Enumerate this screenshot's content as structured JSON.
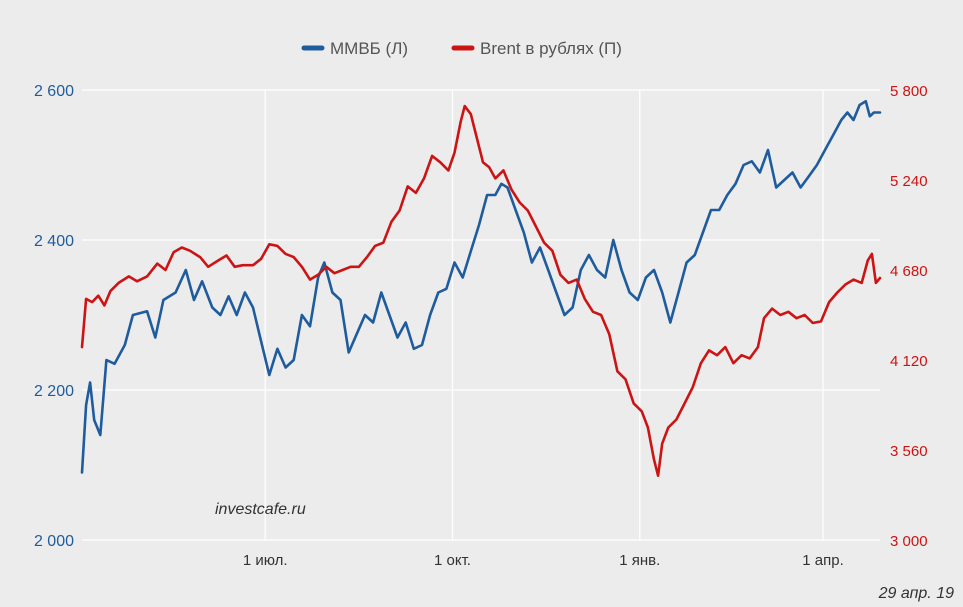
{
  "chart_data": {
    "type": "line",
    "grid": true,
    "legend_position": "top-center",
    "y_left": {
      "ticks": [
        2000,
        2200,
        2400,
        2600
      ],
      "tick_labels": [
        "2 000",
        "2 200",
        "2 400",
        "2 600"
      ],
      "ylim": [
        2000,
        2600
      ]
    },
    "y_right": {
      "ticks": [
        3000,
        3560,
        4120,
        4680,
        5240,
        5800
      ],
      "tick_labels": [
        "3 000",
        "3 560",
        "4 120",
        "4 680",
        "5 240",
        "5 800"
      ],
      "ylim": [
        3000,
        5800
      ]
    },
    "x_ticks": [
      {
        "date": "2018-07-01",
        "label": "1 июл."
      },
      {
        "date": "2018-10-01",
        "label": "1 окт."
      },
      {
        "date": "2019-01-01",
        "label": "1 янв."
      },
      {
        "date": "2019-04-01",
        "label": "1 апр."
      }
    ],
    "xlim": [
      "2018-04-02",
      "2019-04-29"
    ],
    "series": [
      {
        "name": "ММВБ (Л)",
        "axis": "left",
        "color": "#1f5c9e",
        "points": [
          [
            "2018-04-02",
            2090
          ],
          [
            "2018-04-04",
            2180
          ],
          [
            "2018-04-06",
            2210
          ],
          [
            "2018-04-08",
            2160
          ],
          [
            "2018-04-11",
            2140
          ],
          [
            "2018-04-14",
            2240
          ],
          [
            "2018-04-18",
            2235
          ],
          [
            "2018-04-23",
            2260
          ],
          [
            "2018-04-27",
            2300
          ],
          [
            "2018-05-04",
            2305
          ],
          [
            "2018-05-08",
            2270
          ],
          [
            "2018-05-12",
            2320
          ],
          [
            "2018-05-18",
            2330
          ],
          [
            "2018-05-23",
            2360
          ],
          [
            "2018-05-27",
            2320
          ],
          [
            "2018-05-31",
            2345
          ],
          [
            "2018-06-05",
            2310
          ],
          [
            "2018-06-09",
            2300
          ],
          [
            "2018-06-13",
            2325
          ],
          [
            "2018-06-17",
            2300
          ],
          [
            "2018-06-21",
            2330
          ],
          [
            "2018-06-25",
            2310
          ],
          [
            "2018-06-29",
            2265
          ],
          [
            "2018-07-03",
            2220
          ],
          [
            "2018-07-07",
            2255
          ],
          [
            "2018-07-11",
            2230
          ],
          [
            "2018-07-15",
            2240
          ],
          [
            "2018-07-19",
            2300
          ],
          [
            "2018-07-23",
            2285
          ],
          [
            "2018-07-27",
            2350
          ],
          [
            "2018-07-30",
            2370
          ],
          [
            "2018-08-03",
            2330
          ],
          [
            "2018-08-07",
            2320
          ],
          [
            "2018-08-11",
            2250
          ],
          [
            "2018-08-15",
            2275
          ],
          [
            "2018-08-19",
            2300
          ],
          [
            "2018-08-23",
            2290
          ],
          [
            "2018-08-27",
            2330
          ],
          [
            "2018-08-31",
            2300
          ],
          [
            "2018-09-04",
            2270
          ],
          [
            "2018-09-08",
            2290
          ],
          [
            "2018-09-12",
            2255
          ],
          [
            "2018-09-16",
            2260
          ],
          [
            "2018-09-20",
            2300
          ],
          [
            "2018-09-24",
            2330
          ],
          [
            "2018-09-28",
            2335
          ],
          [
            "2018-10-02",
            2370
          ],
          [
            "2018-10-06",
            2350
          ],
          [
            "2018-10-10",
            2385
          ],
          [
            "2018-10-14",
            2420
          ],
          [
            "2018-10-18",
            2460
          ],
          [
            "2018-10-22",
            2460
          ],
          [
            "2018-10-25",
            2475
          ],
          [
            "2018-10-28",
            2470
          ],
          [
            "2018-11-01",
            2440
          ],
          [
            "2018-11-05",
            2410
          ],
          [
            "2018-11-09",
            2370
          ],
          [
            "2018-11-13",
            2390
          ],
          [
            "2018-11-17",
            2360
          ],
          [
            "2018-11-21",
            2330
          ],
          [
            "2018-11-25",
            2300
          ],
          [
            "2018-11-29",
            2310
          ],
          [
            "2018-12-03",
            2360
          ],
          [
            "2018-12-07",
            2380
          ],
          [
            "2018-12-11",
            2360
          ],
          [
            "2018-12-15",
            2350
          ],
          [
            "2018-12-19",
            2400
          ],
          [
            "2018-12-23",
            2360
          ],
          [
            "2018-12-27",
            2330
          ],
          [
            "2018-12-31",
            2320
          ],
          [
            "2019-01-04",
            2350
          ],
          [
            "2019-01-08",
            2360
          ],
          [
            "2019-01-12",
            2330
          ],
          [
            "2019-01-16",
            2290
          ],
          [
            "2019-01-20",
            2330
          ],
          [
            "2019-01-24",
            2370
          ],
          [
            "2019-01-28",
            2380
          ],
          [
            "2019-02-01",
            2410
          ],
          [
            "2019-02-05",
            2440
          ],
          [
            "2019-02-09",
            2440
          ],
          [
            "2019-02-13",
            2460
          ],
          [
            "2019-02-17",
            2475
          ],
          [
            "2019-02-21",
            2500
          ],
          [
            "2019-02-25",
            2505
          ],
          [
            "2019-03-01",
            2490
          ],
          [
            "2019-03-05",
            2520
          ],
          [
            "2019-03-09",
            2470
          ],
          [
            "2019-03-13",
            2480
          ],
          [
            "2019-03-17",
            2490
          ],
          [
            "2019-03-21",
            2470
          ],
          [
            "2019-03-25",
            2485
          ],
          [
            "2019-03-29",
            2500
          ],
          [
            "2019-04-02",
            2520
          ],
          [
            "2019-04-06",
            2540
          ],
          [
            "2019-04-10",
            2560
          ],
          [
            "2019-04-13",
            2570
          ],
          [
            "2019-04-16",
            2560
          ],
          [
            "2019-04-19",
            2580
          ],
          [
            "2019-04-22",
            2585
          ],
          [
            "2019-04-24",
            2565
          ],
          [
            "2019-04-26",
            2570
          ],
          [
            "2019-04-29",
            2570
          ]
        ]
      },
      {
        "name": "Brent в рублях (П)",
        "axis": "right",
        "color": "#cc1414",
        "points": [
          [
            "2018-04-02",
            4200
          ],
          [
            "2018-04-04",
            4500
          ],
          [
            "2018-04-07",
            4480
          ],
          [
            "2018-04-10",
            4520
          ],
          [
            "2018-04-13",
            4460
          ],
          [
            "2018-04-16",
            4550
          ],
          [
            "2018-04-20",
            4600
          ],
          [
            "2018-04-25",
            4640
          ],
          [
            "2018-04-29",
            4610
          ],
          [
            "2018-05-04",
            4640
          ],
          [
            "2018-05-09",
            4720
          ],
          [
            "2018-05-13",
            4680
          ],
          [
            "2018-05-17",
            4790
          ],
          [
            "2018-05-21",
            4820
          ],
          [
            "2018-05-25",
            4800
          ],
          [
            "2018-05-30",
            4760
          ],
          [
            "2018-06-03",
            4700
          ],
          [
            "2018-06-08",
            4740
          ],
          [
            "2018-06-12",
            4770
          ],
          [
            "2018-06-16",
            4700
          ],
          [
            "2018-06-20",
            4710
          ],
          [
            "2018-06-25",
            4710
          ],
          [
            "2018-06-29",
            4750
          ],
          [
            "2018-07-03",
            4840
          ],
          [
            "2018-07-07",
            4830
          ],
          [
            "2018-07-11",
            4780
          ],
          [
            "2018-07-15",
            4760
          ],
          [
            "2018-07-19",
            4700
          ],
          [
            "2018-07-23",
            4620
          ],
          [
            "2018-07-27",
            4650
          ],
          [
            "2018-07-31",
            4700
          ],
          [
            "2018-08-04",
            4660
          ],
          [
            "2018-08-08",
            4680
          ],
          [
            "2018-08-12",
            4700
          ],
          [
            "2018-08-16",
            4700
          ],
          [
            "2018-08-20",
            4760
          ],
          [
            "2018-08-24",
            4830
          ],
          [
            "2018-08-28",
            4850
          ],
          [
            "2018-09-01",
            4980
          ],
          [
            "2018-09-05",
            5050
          ],
          [
            "2018-09-09",
            5200
          ],
          [
            "2018-09-13",
            5160
          ],
          [
            "2018-09-17",
            5250
          ],
          [
            "2018-09-21",
            5390
          ],
          [
            "2018-09-25",
            5350
          ],
          [
            "2018-09-29",
            5300
          ],
          [
            "2018-10-02",
            5410
          ],
          [
            "2018-10-05",
            5600
          ],
          [
            "2018-10-07",
            5700
          ],
          [
            "2018-10-10",
            5650
          ],
          [
            "2018-10-13",
            5500
          ],
          [
            "2018-10-16",
            5350
          ],
          [
            "2018-10-19",
            5320
          ],
          [
            "2018-10-22",
            5250
          ],
          [
            "2018-10-26",
            5300
          ],
          [
            "2018-10-30",
            5180
          ],
          [
            "2018-11-03",
            5100
          ],
          [
            "2018-11-07",
            5050
          ],
          [
            "2018-11-11",
            4950
          ],
          [
            "2018-11-15",
            4850
          ],
          [
            "2018-11-19",
            4800
          ],
          [
            "2018-11-23",
            4650
          ],
          [
            "2018-11-27",
            4600
          ],
          [
            "2018-12-01",
            4620
          ],
          [
            "2018-12-05",
            4500
          ],
          [
            "2018-12-09",
            4420
          ],
          [
            "2018-12-13",
            4400
          ],
          [
            "2018-12-17",
            4280
          ],
          [
            "2018-12-21",
            4050
          ],
          [
            "2018-12-25",
            4000
          ],
          [
            "2018-12-29",
            3850
          ],
          [
            "2019-01-02",
            3800
          ],
          [
            "2019-01-05",
            3700
          ],
          [
            "2019-01-08",
            3500
          ],
          [
            "2019-01-10",
            3400
          ],
          [
            "2019-01-12",
            3600
          ],
          [
            "2019-01-15",
            3700
          ],
          [
            "2019-01-19",
            3750
          ],
          [
            "2019-01-23",
            3850
          ],
          [
            "2019-01-27",
            3950
          ],
          [
            "2019-01-31",
            4100
          ],
          [
            "2019-02-04",
            4180
          ],
          [
            "2019-02-08",
            4150
          ],
          [
            "2019-02-12",
            4200
          ],
          [
            "2019-02-16",
            4100
          ],
          [
            "2019-02-20",
            4150
          ],
          [
            "2019-02-24",
            4130
          ],
          [
            "2019-02-28",
            4200
          ],
          [
            "2019-03-03",
            4380
          ],
          [
            "2019-03-07",
            4440
          ],
          [
            "2019-03-11",
            4400
          ],
          [
            "2019-03-15",
            4420
          ],
          [
            "2019-03-19",
            4380
          ],
          [
            "2019-03-23",
            4400
          ],
          [
            "2019-03-27",
            4350
          ],
          [
            "2019-03-31",
            4360
          ],
          [
            "2019-04-04",
            4480
          ],
          [
            "2019-04-08",
            4540
          ],
          [
            "2019-04-12",
            4590
          ],
          [
            "2019-04-16",
            4620
          ],
          [
            "2019-04-20",
            4600
          ],
          [
            "2019-04-23",
            4740
          ],
          [
            "2019-04-25",
            4780
          ],
          [
            "2019-04-27",
            4600
          ],
          [
            "2019-04-29",
            4630
          ]
        ]
      }
    ],
    "watermark": "investcafe.ru",
    "date_label": "29 апр. 19"
  }
}
